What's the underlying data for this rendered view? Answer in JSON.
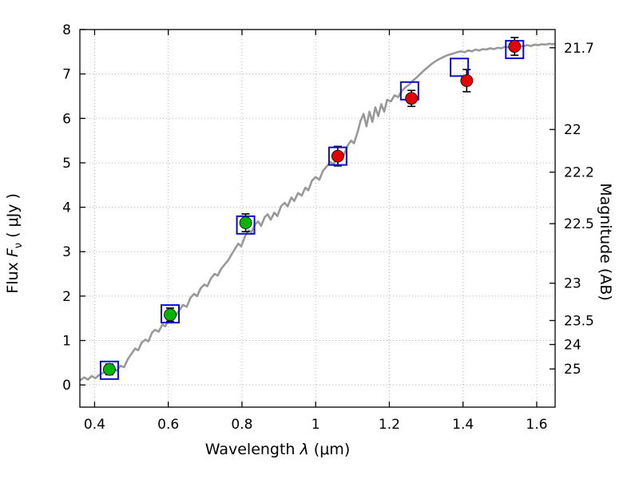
{
  "chart_data": {
    "type": "line",
    "title": "",
    "xlabel_parts": {
      "a": "Wavelength  ",
      "sym": "λ",
      "b": " (μm)"
    },
    "ylabel_parts": {
      "a": "Flux  ",
      "f": "F",
      "sub": "ν",
      "b": "  ( μJy )"
    },
    "y2label": "Magnitude (AB)",
    "xlim": [
      0.36,
      1.65
    ],
    "ylim": [
      -0.5,
      8
    ],
    "grid": true,
    "x_ticks": {
      "values": [
        0.4,
        0.6,
        0.8,
        1.0,
        1.2,
        1.4,
        1.6
      ],
      "labels": [
        "0.4",
        "0.6",
        "0.8",
        "1",
        "1.2",
        "1.4",
        "1.6"
      ]
    },
    "y_ticks": {
      "values": [
        0,
        1,
        2,
        3,
        4,
        5,
        6,
        7,
        8
      ],
      "labels": [
        "0",
        "1",
        "2",
        "3",
        "4",
        "5",
        "6",
        "7",
        "8"
      ]
    },
    "y2_ticks": [
      {
        "label": "21.7",
        "flux": 7.59
      },
      {
        "label": "22",
        "flux": 5.75
      },
      {
        "label": "22.2",
        "flux": 4.79
      },
      {
        "label": "22.5",
        "flux": 3.63
      },
      {
        "label": "23",
        "flux": 2.29
      },
      {
        "label": "23.5",
        "flux": 1.45
      },
      {
        "label": "24",
        "flux": 0.91
      },
      {
        "label": "25",
        "flux": 0.36
      }
    ],
    "spectrum": {
      "name": "model-spectrum",
      "color": "#999999",
      "xy": [
        [
          0.36,
          0.1
        ],
        [
          0.372,
          0.17
        ],
        [
          0.382,
          0.12
        ],
        [
          0.392,
          0.2
        ],
        [
          0.402,
          0.15
        ],
        [
          0.412,
          0.22
        ],
        [
          0.422,
          0.27
        ],
        [
          0.432,
          0.3
        ],
        [
          0.442,
          0.35
        ],
        [
          0.452,
          0.37
        ],
        [
          0.46,
          0.32
        ],
        [
          0.47,
          0.43
        ],
        [
          0.48,
          0.4
        ],
        [
          0.49,
          0.58
        ],
        [
          0.5,
          0.7
        ],
        [
          0.51,
          0.82
        ],
        [
          0.518,
          0.78
        ],
        [
          0.528,
          0.96
        ],
        [
          0.538,
          1.02
        ],
        [
          0.546,
          0.98
        ],
        [
          0.556,
          1.18
        ],
        [
          0.564,
          1.24
        ],
        [
          0.574,
          1.2
        ],
        [
          0.584,
          1.36
        ],
        [
          0.592,
          1.32
        ],
        [
          0.602,
          1.5
        ],
        [
          0.612,
          1.6
        ],
        [
          0.62,
          1.56
        ],
        [
          0.63,
          1.68
        ],
        [
          0.64,
          1.8
        ],
        [
          0.65,
          1.76
        ],
        [
          0.66,
          1.96
        ],
        [
          0.67,
          2.05
        ],
        [
          0.678,
          2.0
        ],
        [
          0.688,
          2.18
        ],
        [
          0.698,
          2.26
        ],
        [
          0.706,
          2.22
        ],
        [
          0.716,
          2.4
        ],
        [
          0.726,
          2.5
        ],
        [
          0.734,
          2.46
        ],
        [
          0.744,
          2.62
        ],
        [
          0.754,
          2.72
        ],
        [
          0.762,
          2.8
        ],
        [
          0.772,
          2.94
        ],
        [
          0.78,
          3.05
        ],
        [
          0.79,
          3.18
        ],
        [
          0.798,
          3.12
        ],
        [
          0.808,
          3.34
        ],
        [
          0.818,
          3.48
        ],
        [
          0.826,
          3.44
        ],
        [
          0.836,
          3.62
        ],
        [
          0.844,
          3.68
        ],
        [
          0.852,
          3.58
        ],
        [
          0.862,
          3.78
        ],
        [
          0.87,
          3.84
        ],
        [
          0.878,
          3.72
        ],
        [
          0.888,
          3.88
        ],
        [
          0.896,
          3.8
        ],
        [
          0.906,
          4.02
        ],
        [
          0.916,
          4.1
        ],
        [
          0.924,
          4.02
        ],
        [
          0.934,
          4.22
        ],
        [
          0.942,
          4.14
        ],
        [
          0.952,
          4.32
        ],
        [
          0.962,
          4.26
        ],
        [
          0.972,
          4.44
        ],
        [
          0.98,
          4.38
        ],
        [
          0.99,
          4.6
        ],
        [
          1.0,
          4.68
        ],
        [
          1.01,
          4.62
        ],
        [
          1.02,
          4.82
        ],
        [
          1.03,
          4.92
        ],
        [
          1.04,
          5.02
        ],
        [
          1.048,
          4.96
        ],
        [
          1.058,
          5.14
        ],
        [
          1.068,
          5.22
        ],
        [
          1.076,
          5.16
        ],
        [
          1.086,
          5.38
        ],
        [
          1.096,
          5.5
        ],
        [
          1.104,
          5.44
        ],
        [
          1.114,
          5.7
        ],
        [
          1.122,
          5.95
        ],
        [
          1.13,
          6.1
        ],
        [
          1.138,
          5.82
        ],
        [
          1.146,
          6.15
        ],
        [
          1.154,
          5.92
        ],
        [
          1.162,
          6.25
        ],
        [
          1.17,
          6.05
        ],
        [
          1.178,
          6.32
        ],
        [
          1.186,
          6.15
        ],
        [
          1.194,
          6.42
        ],
        [
          1.204,
          6.38
        ],
        [
          1.214,
          6.52
        ],
        [
          1.224,
          6.48
        ],
        [
          1.234,
          6.62
        ],
        [
          1.244,
          6.7
        ],
        [
          1.254,
          6.76
        ],
        [
          1.264,
          6.85
        ],
        [
          1.274,
          6.92
        ],
        [
          1.284,
          7.0
        ],
        [
          1.294,
          7.08
        ],
        [
          1.304,
          7.15
        ],
        [
          1.314,
          7.22
        ],
        [
          1.324,
          7.28
        ],
        [
          1.334,
          7.33
        ],
        [
          1.344,
          7.37
        ],
        [
          1.354,
          7.41
        ],
        [
          1.364,
          7.44
        ],
        [
          1.374,
          7.46
        ],
        [
          1.384,
          7.49
        ],
        [
          1.394,
          7.51
        ],
        [
          1.404,
          7.49
        ],
        [
          1.414,
          7.53
        ],
        [
          1.424,
          7.51
        ],
        [
          1.434,
          7.55
        ],
        [
          1.444,
          7.53
        ],
        [
          1.454,
          7.56
        ],
        [
          1.464,
          7.55
        ],
        [
          1.474,
          7.58
        ],
        [
          1.484,
          7.56
        ],
        [
          1.494,
          7.59
        ],
        [
          1.504,
          7.58
        ],
        [
          1.514,
          7.61
        ],
        [
          1.524,
          7.6
        ],
        [
          1.534,
          7.62
        ],
        [
          1.544,
          7.61
        ],
        [
          1.554,
          7.63
        ],
        [
          1.564,
          7.62
        ],
        [
          1.574,
          7.65
        ],
        [
          1.584,
          7.63
        ],
        [
          1.594,
          7.66
        ],
        [
          1.604,
          7.65
        ],
        [
          1.614,
          7.67
        ],
        [
          1.624,
          7.66
        ],
        [
          1.634,
          7.68
        ],
        [
          1.644,
          7.67
        ],
        [
          1.65,
          7.68
        ]
      ]
    },
    "observed_green": {
      "name": "observed-photometry-optical",
      "color": "#00b400",
      "points": [
        {
          "x": 0.44,
          "y": 0.35,
          "err": 0.12
        },
        {
          "x": 0.605,
          "y": 1.58,
          "err": 0.15
        },
        {
          "x": 0.81,
          "y": 3.65,
          "err": 0.2
        }
      ]
    },
    "observed_red": {
      "name": "observed-photometry-infrared",
      "color": "#e30000",
      "points": [
        {
          "x": 1.06,
          "y": 5.15,
          "err": 0.22
        },
        {
          "x": 1.26,
          "y": 6.45,
          "err": 0.18
        },
        {
          "x": 1.41,
          "y": 6.85,
          "err": 0.25
        },
        {
          "x": 1.54,
          "y": 7.62,
          "err": 0.2
        }
      ]
    },
    "model_squares": {
      "name": "model-photometry",
      "color": "#0a0ad2",
      "points": [
        {
          "x": 0.44,
          "y": 0.33
        },
        {
          "x": 0.605,
          "y": 1.6
        },
        {
          "x": 0.81,
          "y": 3.6
        },
        {
          "x": 1.06,
          "y": 5.15
        },
        {
          "x": 1.255,
          "y": 6.62
        },
        {
          "x": 1.39,
          "y": 7.15
        },
        {
          "x": 1.54,
          "y": 7.55
        }
      ]
    },
    "style": {
      "grid_color": "#b0b0b0",
      "frame_color": "#000000",
      "errorbar_color": "#000000",
      "tick_label_size": 17,
      "square_size": 22,
      "circle_radius": 7.5
    }
  }
}
